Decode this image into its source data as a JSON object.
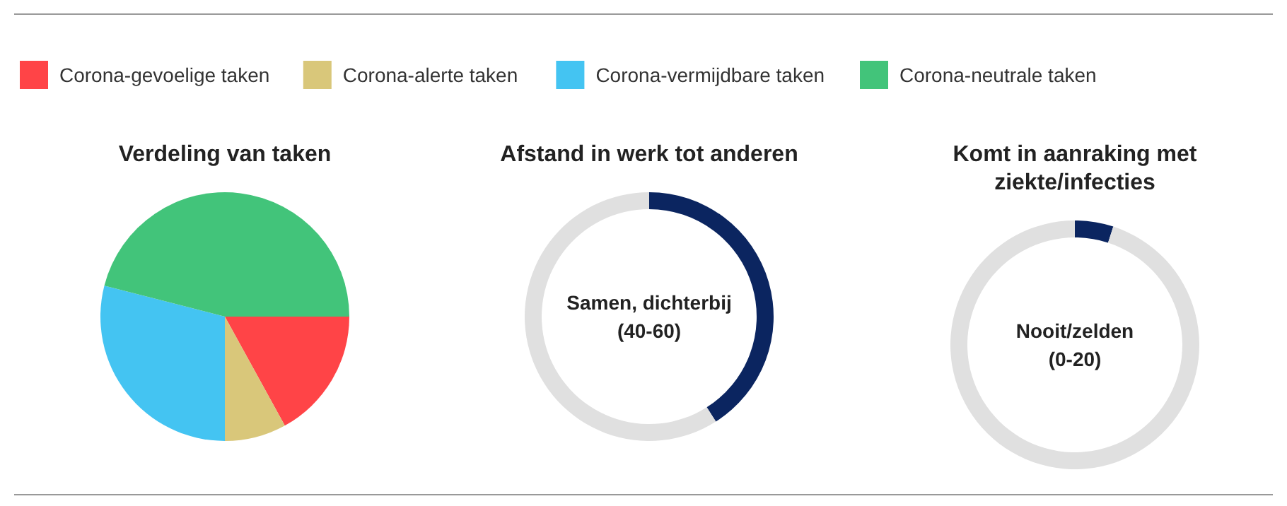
{
  "chart_data": [
    {
      "type": "pie",
      "title": "Verdeling van taken",
      "categories": [
        "Corona-gevoelige taken",
        "Corona-alerte taken",
        "Corona-vermijdbare taken",
        "Corona-neutrale taken"
      ],
      "values": [
        17,
        8,
        29,
        46
      ],
      "colors": [
        "#ff4447",
        "#d9c77a",
        "#44c4f2",
        "#42c47a"
      ],
      "legend": "top"
    },
    {
      "type": "donut",
      "title": "Afstand in werk tot anderen",
      "categories": [
        null,
        null
      ],
      "values": [
        41,
        59
      ],
      "colors": [
        "#0b2560",
        "#e0e0e0"
      ],
      "annotations": [
        "Samen, dichterbij",
        "(40-60)"
      ]
    },
    {
      "type": "donut",
      "title": "Komt in aanraking met ziekte/infecties",
      "categories": [
        null,
        null
      ],
      "values": [
        5,
        95
      ],
      "colors": [
        "#0b2560",
        "#e0e0e0"
      ],
      "annotations": [
        "Nooit/zelden",
        "(0-20)"
      ]
    }
  ]
}
